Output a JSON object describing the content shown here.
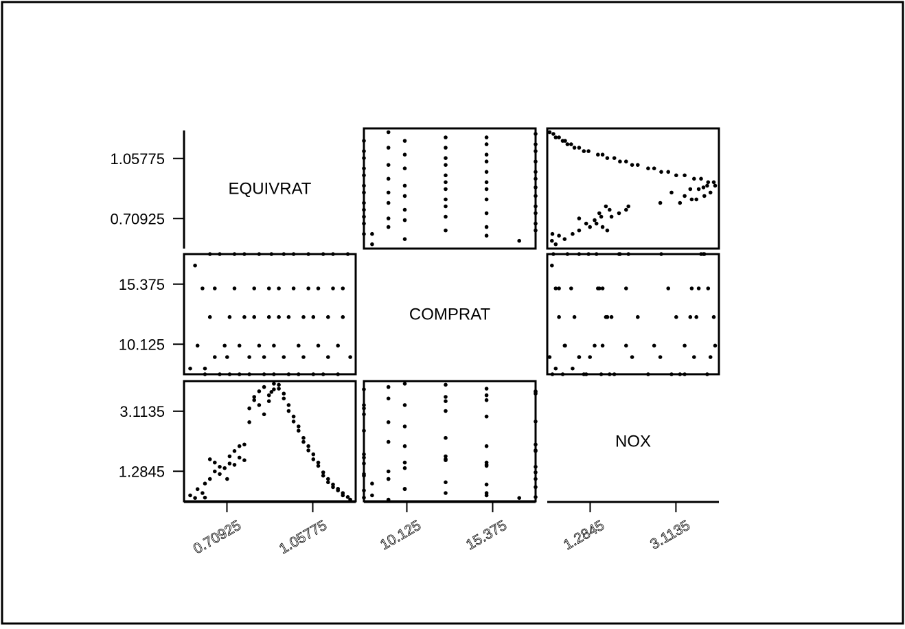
{
  "chart_data": {
    "type": "scatter",
    "title": "",
    "variables": [
      "EQUIVRAT",
      "COMPRAT",
      "NOX"
    ],
    "tick_labels": {
      "EQUIVRAT": [
        "0.70925",
        "1.05775"
      ],
      "COMPRAT": [
        "10.125",
        "15.375"
      ],
      "NOX": [
        "1.2845",
        "3.1135"
      ]
    },
    "tick_values": {
      "EQUIVRAT": [
        0.70925,
        1.05775
      ],
      "COMPRAT": [
        10.125,
        15.375
      ],
      "NOX": [
        1.2845,
        3.1135
      ]
    },
    "axis_ranges": {
      "EQUIVRAT": [
        0.535,
        1.232
      ],
      "COMPRAT": [
        7.5,
        18.0
      ],
      "NOX": [
        0.37,
        4.03
      ]
    },
    "grid": false,
    "legend": "none",
    "observations": {
      "EQUIVRAT": [
        0.56,
        0.58,
        0.59,
        0.61,
        0.62,
        0.62,
        0.64,
        0.64,
        0.66,
        0.66,
        0.68,
        0.68,
        0.7,
        0.71,
        0.72,
        0.72,
        0.74,
        0.74,
        0.76,
        0.76,
        0.78,
        0.78,
        0.8,
        0.8,
        0.82,
        0.82,
        0.84,
        0.84,
        0.86,
        0.86,
        0.88,
        0.88,
        0.89,
        0.9,
        0.9,
        0.92,
        0.92,
        0.94,
        0.94,
        0.96,
        0.96,
        0.98,
        0.98,
        1.0,
        1.0,
        1.02,
        1.02,
        1.04,
        1.04,
        1.06,
        1.06,
        1.08,
        1.08,
        1.1,
        1.1,
        1.12,
        1.12,
        1.14,
        1.14,
        1.16,
        1.16,
        1.18,
        1.18,
        1.2,
        1.21
      ],
      "COMPRAT": [
        8.0,
        17.0,
        10.0,
        15.0,
        7.5,
        8.0,
        18.0,
        12.5,
        9.0,
        15.0,
        18.0,
        7.5,
        10.0,
        9.0,
        7.5,
        12.5,
        18.0,
        15.0,
        7.5,
        10.0,
        12.5,
        18.0,
        9.0,
        7.5,
        15.0,
        12.5,
        18.0,
        10.0,
        7.5,
        9.0,
        15.0,
        12.5,
        18.0,
        7.5,
        10.0,
        12.5,
        15.0,
        18.0,
        9.0,
        7.5,
        12.5,
        15.0,
        18.0,
        10.0,
        7.5,
        12.5,
        9.0,
        15.0,
        18.0,
        7.5,
        12.5,
        10.0,
        15.0,
        18.0,
        7.5,
        9.0,
        12.5,
        15.0,
        18.0,
        10.0,
        7.5,
        12.5,
        15.0,
        18.0,
        9.0
      ],
      "NOX": [
        0.55,
        0.47,
        0.74,
        0.62,
        0.48,
        0.91,
        1.05,
        1.65,
        1.28,
        1.55,
        1.42,
        1.2,
        1.38,
        1.05,
        1.52,
        1.74,
        1.9,
        1.48,
        1.7,
        2.05,
        1.62,
        2.1,
        2.78,
        3.2,
        3.45,
        3.55,
        3.72,
        3.3,
        3.02,
        3.85,
        3.6,
        3.42,
        3.7,
        3.78,
        3.95,
        3.92,
        3.8,
        3.65,
        3.5,
        3.3,
        3.12,
        2.95,
        2.8,
        2.65,
        2.52,
        2.3,
        2.18,
        2.05,
        1.92,
        1.8,
        1.65,
        1.55,
        1.45,
        1.25,
        1.15,
        1.05,
        0.95,
        0.88,
        0.8,
        0.75,
        0.7,
        0.62,
        0.55,
        0.5,
        0.42
      ]
    }
  }
}
